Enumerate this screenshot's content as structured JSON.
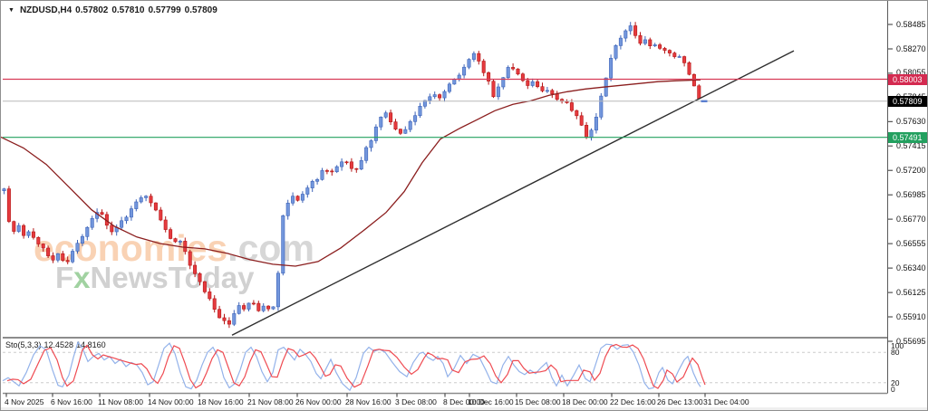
{
  "window_header": {
    "symbol": "NZDUSD,H4",
    "open": "0.57802",
    "high": "0.57810",
    "low": "0.57799",
    "close": "0.57809",
    "dropdown_icon": "triangle-down"
  },
  "watermark": {
    "brand": "economies",
    "brand_suffix": ".com",
    "tagline_f": "F",
    "tagline_x": "x",
    "tagline_rest": "NewsToday"
  },
  "price_axis": {
    "ticks": [
      "0.58485",
      "0.58270",
      "0.58055",
      "0.57845",
      "0.57630",
      "0.57415",
      "0.57200",
      "0.56985",
      "0.56770",
      "0.56555",
      "0.56340",
      "0.56125",
      "0.55910",
      "0.55695"
    ],
    "badges": [
      {
        "label": "0.58003",
        "price": 0.58003,
        "bg": "#d42a50"
      },
      {
        "label": "0.57809",
        "price": 0.57809,
        "bg": "#000000"
      },
      {
        "label": "0.57491",
        "price": 0.57491,
        "bg": "#23a05f"
      }
    ]
  },
  "time_axis": {
    "labels": [
      {
        "text": "4 Nov 2025",
        "x": 4
      },
      {
        "text": "6 Nov 16:00",
        "x": 55
      },
      {
        "text": "11 Nov 08:00",
        "x": 107
      },
      {
        "text": "14 Nov 00:00",
        "x": 162
      },
      {
        "text": "18 Nov 16:00",
        "x": 217
      },
      {
        "text": "21 Nov 08:00",
        "x": 272
      },
      {
        "text": "26 Nov 00:00",
        "x": 325
      },
      {
        "text": "28 Nov 16:00",
        "x": 380
      },
      {
        "text": "3 Dec 08:00",
        "x": 435
      },
      {
        "text": "8 Dec 00:00",
        "x": 488
      },
      {
        "text": "10 Dec 16:00",
        "x": 515
      },
      {
        "text": "15 Dec 08:00",
        "x": 567
      },
      {
        "text": "18 Dec 00:00",
        "x": 619
      },
      {
        "text": "22 Dec 16:00",
        "x": 672
      },
      {
        "text": "26 Dec 13:00",
        "x": 724
      },
      {
        "text": "31 Dec 04:00",
        "x": 775
      }
    ]
  },
  "indicator_panel": {
    "label_name": "Sto(5,3,3)",
    "label_value_k": "12.4528",
    "label_value_d": "14.8160",
    "scale_labels": [
      {
        "text": "100",
        "v": 100
      },
      {
        "text": "80",
        "v": 80
      },
      {
        "text": "20",
        "v": 20
      },
      {
        "text": "0",
        "v": 0
      }
    ],
    "levels": [
      80,
      20
    ]
  },
  "colors": {
    "bull": "#7296dc",
    "bull_border": "#3d63b8",
    "bear": "#e53a3e",
    "bear_border": "#b51717",
    "ma_line": "#8b1e1e",
    "trendline": "#2e2e2e",
    "resistance": "#d83a56",
    "support": "#23a05f",
    "current_price_line": "#b8b8b8",
    "stoch_k": "#93b2ea",
    "stoch_d": "#ef4b52",
    "level_dash": "#cccccc",
    "panel_border": "#8c8c8c"
  },
  "chart_data": [
    {
      "type": "candlestick",
      "title": "NZDUSD H4",
      "ylim": [
        0.55695,
        0.58485
      ],
      "y_tick_step": 0.00215,
      "last_close": 0.57809,
      "price_path": [
        [
          3,
          0.57053
        ],
        [
          8,
          0.56773
        ],
        [
          14,
          0.56677
        ],
        [
          20,
          0.56725
        ],
        [
          26,
          0.56629
        ],
        [
          32,
          0.56677
        ],
        [
          38,
          0.56597
        ],
        [
          45,
          0.56533
        ],
        [
          52,
          0.56437
        ],
        [
          58,
          0.56389
        ],
        [
          64,
          0.56469
        ],
        [
          70,
          0.56373
        ],
        [
          76,
          0.56413
        ],
        [
          82,
          0.56533
        ],
        [
          88,
          0.56597
        ],
        [
          94,
          0.56677
        ],
        [
          100,
          0.56773
        ],
        [
          106,
          0.56837
        ],
        [
          112,
          0.56789
        ],
        [
          118,
          0.56709
        ],
        [
          124,
          0.56653
        ],
        [
          130,
          0.56709
        ],
        [
          136,
          0.56773
        ],
        [
          142,
          0.56837
        ],
        [
          148,
          0.56893
        ],
        [
          154,
          0.56949
        ],
        [
          160,
          0.56973
        ],
        [
          166,
          0.56917
        ],
        [
          172,
          0.56853
        ],
        [
          178,
          0.56733
        ],
        [
          184,
          0.56629
        ],
        [
          190,
          0.56533
        ],
        [
          196,
          0.56597
        ],
        [
          202,
          0.56493
        ],
        [
          208,
          0.56389
        ],
        [
          214,
          0.56293
        ],
        [
          220,
          0.56213
        ],
        [
          226,
          0.56133
        ],
        [
          232,
          0.56037
        ],
        [
          238,
          0.55933
        ],
        [
          244,
          0.55877
        ],
        [
          250,
          0.55829
        ],
        [
          256,
          0.55933
        ],
        [
          262,
          0.56013
        ],
        [
          268,
          0.55973
        ],
        [
          274,
          0.56053
        ],
        [
          280,
          0.56005
        ],
        [
          286,
          0.55957
        ],
        [
          292,
          0.56021
        ],
        [
          298,
          0.55973
        ],
        [
          304,
          0.56053
        ],
        [
          310,
          0.56773
        ],
        [
          316,
          0.56893
        ],
        [
          322,
          0.56973
        ],
        [
          328,
          0.56917
        ],
        [
          334,
          0.57013
        ],
        [
          340,
          0.57053
        ],
        [
          346,
          0.57109
        ],
        [
          352,
          0.57157
        ],
        [
          358,
          0.57213
        ],
        [
          364,
          0.57173
        ],
        [
          370,
          0.57237
        ],
        [
          376,
          0.57293
        ],
        [
          382,
          0.57253
        ],
        [
          388,
          0.57189
        ],
        [
          394,
          0.57237
        ],
        [
          400,
          0.57333
        ],
        [
          406,
          0.57429
        ],
        [
          412,
          0.57533
        ],
        [
          418,
          0.57669
        ],
        [
          424,
          0.57717
        ],
        [
          430,
          0.57637
        ],
        [
          436,
          0.57573
        ],
        [
          442,
          0.57509
        ],
        [
          448,
          0.57589
        ],
        [
          454,
          0.57669
        ],
        [
          460,
          0.57733
        ],
        [
          466,
          0.57797
        ],
        [
          472,
          0.57829
        ],
        [
          478,
          0.57877
        ],
        [
          484,
          0.57829
        ],
        [
          490,
          0.57893
        ],
        [
          496,
          0.57957
        ],
        [
          502,
          0.58013
        ],
        [
          508,
          0.58069
        ],
        [
          514,
          0.58149
        ],
        [
          520,
          0.58229
        ],
        [
          526,
          0.58197
        ],
        [
          532,
          0.58093
        ],
        [
          538,
          0.57973
        ],
        [
          544,
          0.57853
        ],
        [
          550,
          0.57933
        ],
        [
          556,
          0.58053
        ],
        [
          562,
          0.58117
        ],
        [
          568,
          0.58069
        ],
        [
          574,
          0.58013
        ],
        [
          580,
          0.57957
        ],
        [
          586,
          0.57989
        ],
        [
          592,
          0.57933
        ],
        [
          598,
          0.57877
        ],
        [
          604,
          0.57909
        ],
        [
          610,
          0.57853
        ],
        [
          616,
          0.57797
        ],
        [
          622,
          0.57829
        ],
        [
          628,
          0.57749
        ],
        [
          634,
          0.57693
        ],
        [
          640,
          0.57613
        ],
        [
          646,
          0.57509
        ],
        [
          652,
          0.57557
        ],
        [
          658,
          0.57693
        ],
        [
          664,
          0.57893
        ],
        [
          670,
          0.58093
        ],
        [
          676,
          0.58253
        ],
        [
          682,
          0.58357
        ],
        [
          688,
          0.58413
        ],
        [
          694,
          0.58469
        ],
        [
          700,
          0.58389
        ],
        [
          706,
          0.58333
        ],
        [
          712,
          0.58373
        ],
        [
          718,
          0.58277
        ],
        [
          724,
          0.58309
        ],
        [
          730,
          0.58229
        ],
        [
          736,
          0.58277
        ],
        [
          742,
          0.58197
        ],
        [
          748,
          0.58229
        ],
        [
          754,
          0.58149
        ],
        [
          760,
          0.58053
        ],
        [
          766,
          0.57933
        ],
        [
          772,
          0.57809
        ]
      ],
      "ma_line": [
        [
          0,
          0.57493
        ],
        [
          25,
          0.57397
        ],
        [
          50,
          0.57253
        ],
        [
          75,
          0.57053
        ],
        [
          100,
          0.56853
        ],
        [
          125,
          0.56709
        ],
        [
          150,
          0.56613
        ],
        [
          175,
          0.56557
        ],
        [
          200,
          0.56525
        ],
        [
          225,
          0.56509
        ],
        [
          250,
          0.56469
        ],
        [
          275,
          0.56413
        ],
        [
          300,
          0.56373
        ],
        [
          325,
          0.56357
        ],
        [
          350,
          0.56397
        ],
        [
          375,
          0.56517
        ],
        [
          400,
          0.56669
        ],
        [
          425,
          0.56829
        ],
        [
          445,
          0.57013
        ],
        [
          465,
          0.57269
        ],
        [
          485,
          0.57477
        ],
        [
          505,
          0.57565
        ],
        [
          525,
          0.57645
        ],
        [
          545,
          0.57725
        ],
        [
          565,
          0.57781
        ],
        [
          585,
          0.57813
        ],
        [
          605,
          0.57861
        ],
        [
          625,
          0.57893
        ],
        [
          645,
          0.57917
        ],
        [
          665,
          0.57933
        ],
        [
          685,
          0.57949
        ],
        [
          705,
          0.57965
        ],
        [
          725,
          0.57981
        ],
        [
          745,
          0.57989
        ],
        [
          772,
          0.57997
        ]
      ],
      "trendline": [
        [
          255,
          0.55749
        ],
        [
          875,
          0.58253
        ]
      ],
      "hlines": [
        {
          "price": 0.58003,
          "role": "resistance"
        },
        {
          "price": 0.57809,
          "role": "current_price_line"
        },
        {
          "price": 0.57491,
          "role": "support"
        }
      ]
    },
    {
      "type": "line",
      "name": "Stochastic(5,3,3)",
      "ylim": [
        0,
        100
      ],
      "levels": [
        80,
        20
      ],
      "k_last": 12.4528,
      "d_last": 14.816,
      "k_points": [
        [
          2,
          24
        ],
        [
          8,
          30
        ],
        [
          14,
          22
        ],
        [
          20,
          14
        ],
        [
          28,
          40
        ],
        [
          36,
          75
        ],
        [
          43,
          93
        ],
        [
          50,
          85
        ],
        [
          57,
          45
        ],
        [
          63,
          15
        ],
        [
          68,
          12
        ],
        [
          75,
          35
        ],
        [
          80,
          70
        ],
        [
          85,
          100
        ],
        [
          90,
          88
        ],
        [
          96,
          62
        ],
        [
          102,
          72
        ],
        [
          108,
          78
        ],
        [
          114,
          65
        ],
        [
          120,
          72
        ],
        [
          126,
          58
        ],
        [
          132,
          66
        ],
        [
          138,
          52
        ],
        [
          144,
          60
        ],
        [
          150,
          55
        ],
        [
          156,
          40
        ],
        [
          162,
          16
        ],
        [
          168,
          22
        ],
        [
          174,
          55
        ],
        [
          180,
          88
        ],
        [
          186,
          98
        ],
        [
          192,
          78
        ],
        [
          198,
          40
        ],
        [
          204,
          12
        ],
        [
          210,
          8
        ],
        [
          216,
          25
        ],
        [
          222,
          55
        ],
        [
          228,
          80
        ],
        [
          234,
          90
        ],
        [
          240,
          70
        ],
        [
          246,
          30
        ],
        [
          252,
          10
        ],
        [
          258,
          18
        ],
        [
          264,
          45
        ],
        [
          270,
          80
        ],
        [
          276,
          90
        ],
        [
          282,
          72
        ],
        [
          288,
          42
        ],
        [
          294,
          22
        ],
        [
          300,
          40
        ],
        [
          306,
          85
        ],
        [
          312,
          90
        ],
        [
          318,
          78
        ],
        [
          324,
          65
        ],
        [
          330,
          86
        ],
        [
          336,
          76
        ],
        [
          342,
          62
        ],
        [
          348,
          38
        ],
        [
          353,
          28
        ],
        [
          358,
          45
        ],
        [
          364,
          66
        ],
        [
          370,
          40
        ],
        [
          377,
          18
        ],
        [
          385,
          5
        ],
        [
          392,
          30
        ],
        [
          400,
          78
        ],
        [
          406,
          90
        ],
        [
          412,
          82
        ],
        [
          418,
          86
        ],
        [
          424,
          80
        ],
        [
          432,
          60
        ],
        [
          440,
          42
        ],
        [
          448,
          32
        ],
        [
          455,
          60
        ],
        [
          462,
          78
        ],
        [
          466,
          80
        ],
        [
          471,
          70
        ],
        [
          477,
          64
        ],
        [
          482,
          72
        ],
        [
          488,
          58
        ],
        [
          493,
          32
        ],
        [
          500,
          48
        ],
        [
          507,
          74
        ],
        [
          514,
          58
        ],
        [
          521,
          76
        ],
        [
          528,
          70
        ],
        [
          535,
          45
        ],
        [
          541,
          22
        ],
        [
          547,
          18
        ],
        [
          554,
          55
        ],
        [
          560,
          72
        ],
        [
          566,
          55
        ],
        [
          572,
          42
        ],
        [
          578,
          36
        ],
        [
          584,
          45
        ],
        [
          590,
          38
        ],
        [
          596,
          50
        ],
        [
          602,
          60
        ],
        [
          608,
          30
        ],
        [
          613,
          14
        ],
        [
          619,
          35
        ],
        [
          625,
          14
        ],
        [
          632,
          35
        ],
        [
          638,
          55
        ],
        [
          645,
          28
        ],
        [
          650,
          22
        ],
        [
          656,
          55
        ],
        [
          662,
          88
        ],
        [
          668,
          96
        ],
        [
          674,
          95
        ],
        [
          680,
          86
        ],
        [
          686,
          94
        ],
        [
          692,
          95
        ],
        [
          698,
          80
        ],
        [
          704,
          55
        ],
        [
          710,
          20
        ],
        [
          715,
          8
        ],
        [
          720,
          10
        ],
        [
          726,
          40
        ],
        [
          730,
          50
        ],
        [
          736,
          25
        ],
        [
          741,
          18
        ],
        [
          748,
          45
        ],
        [
          754,
          65
        ],
        [
          758,
          72
        ],
        [
          764,
          40
        ],
        [
          769,
          20
        ],
        [
          772,
          12
        ]
      ]
    }
  ]
}
